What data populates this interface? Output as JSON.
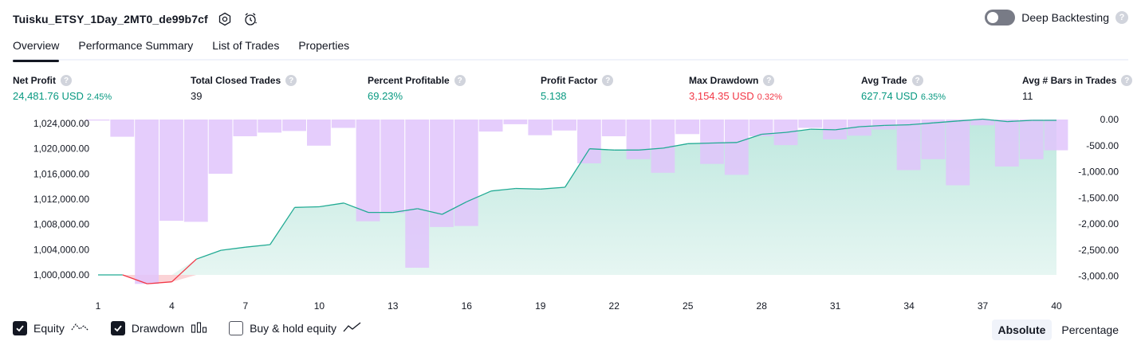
{
  "header": {
    "title": "Tuisku_ETSY_1Day_2MT0_de99b7cf",
    "deep_backtesting_label": "Deep Backtesting",
    "help_glyph": "?"
  },
  "tabs": [
    {
      "label": "Overview",
      "active": true
    },
    {
      "label": "Performance Summary",
      "active": false
    },
    {
      "label": "List of Trades",
      "active": false
    },
    {
      "label": "Properties",
      "active": false
    }
  ],
  "metrics": [
    {
      "label": "Net Profit",
      "value": "24,481.76 USD",
      "sub": "2.45%",
      "tone": "pos"
    },
    {
      "label": "Total Closed Trades",
      "value": "39",
      "sub": "",
      "tone": "neu"
    },
    {
      "label": "Percent Profitable",
      "value": "69.23%",
      "sub": "",
      "tone": "pos"
    },
    {
      "label": "Profit Factor",
      "value": "5.138",
      "sub": "",
      "tone": "pos"
    },
    {
      "label": "Max Drawdown",
      "value": "3,154.35 USD",
      "sub": "0.32%",
      "tone": "neg"
    },
    {
      "label": "Avg Trade",
      "value": "627.74 USD",
      "sub": "6.35%",
      "tone": "pos"
    },
    {
      "label": "Avg # Bars in Trades",
      "value": "11",
      "sub": "",
      "tone": "neu"
    }
  ],
  "colors": {
    "equity_line": "#22ab94",
    "equity_fill": "#d5f0ea",
    "equity_negative": "#f23645",
    "drawdown_bar": "#e1c4fb",
    "drawdown_overlap": "#b4b6e8",
    "text": "#131722",
    "positive": "#089981",
    "negative": "#f23645"
  },
  "chart_data": {
    "type": "area",
    "x_ticks": [
      1,
      4,
      7,
      10,
      13,
      16,
      19,
      22,
      25,
      28,
      31,
      34,
      37,
      40
    ],
    "left_axis": {
      "ticks": [
        "1,024,000.00",
        "1,020,000.00",
        "1,016,000.00",
        "1,012,000.00",
        "1,008,000.00",
        "1,004,000.00",
        "1,000,000.00"
      ],
      "tick_values": [
        1024000,
        1020000,
        1016000,
        1012000,
        1008000,
        1004000,
        1000000
      ],
      "ylim": [
        998000,
        1025000
      ]
    },
    "right_axis": {
      "ticks": [
        "0.00",
        "-500.00",
        "-1,000.00",
        "-1,500.00",
        "-2,000.00",
        "-2,500.00",
        "-3,000.00"
      ],
      "tick_values": [
        0,
        -500,
        -1000,
        -1500,
        -2000,
        -2500,
        -3000
      ],
      "ylim": [
        -3000,
        0
      ]
    },
    "series": [
      {
        "name": "Equity",
        "x": [
          1,
          2,
          3,
          4,
          5,
          6,
          7,
          8,
          9,
          10,
          11,
          12,
          13,
          14,
          15,
          16,
          17,
          18,
          19,
          20,
          21,
          22,
          23,
          24,
          25,
          26,
          27,
          28,
          29,
          30,
          31,
          32,
          33,
          34,
          35,
          36,
          37,
          38,
          39,
          40
        ],
        "values": [
          1000000,
          1000000,
          998600,
          998900,
          1002500,
          1003900,
          1004400,
          1004800,
          1010700,
          1010800,
          1011400,
          1009900,
          1009900,
          1010500,
          1009600,
          1011600,
          1013300,
          1013700,
          1013600,
          1013900,
          1020000,
          1019800,
          1019800,
          1020100,
          1020800,
          1020900,
          1021000,
          1022300,
          1022600,
          1023100,
          1023000,
          1023500,
          1023700,
          1023800,
          1024100,
          1024400,
          1024700,
          1024300,
          1024500,
          1024500
        ]
      },
      {
        "name": "Drawdown",
        "x": [
          1,
          2,
          3,
          4,
          5,
          6,
          7,
          8,
          9,
          10,
          11,
          12,
          13,
          14,
          15,
          16,
          17,
          18,
          19,
          20,
          21,
          22,
          23,
          24,
          25,
          26,
          27,
          28,
          29,
          30,
          31,
          32,
          33,
          34,
          35,
          36,
          37,
          38,
          39,
          40
        ],
        "values": [
          -20,
          -330,
          -3150,
          -1940,
          -1960,
          -1040,
          -320,
          -250,
          -220,
          -500,
          -160,
          -1950,
          -1790,
          -2840,
          -2060,
          -2040,
          -230,
          -90,
          -300,
          -210,
          -840,
          -320,
          -760,
          -1020,
          -280,
          -850,
          -1060,
          -320,
          -490,
          -160,
          -380,
          -310,
          -190,
          -970,
          -760,
          -1260,
          -110,
          -900,
          -760,
          -590
        ]
      }
    ]
  },
  "legend": {
    "equity": {
      "label": "Equity",
      "checked": true
    },
    "drawdown": {
      "label": "Drawdown",
      "checked": true
    },
    "buy_hold": {
      "label": "Buy & hold equity",
      "checked": false
    }
  },
  "mode_buttons": [
    {
      "label": "Absolute",
      "active": true
    },
    {
      "label": "Percentage",
      "active": false
    }
  ]
}
